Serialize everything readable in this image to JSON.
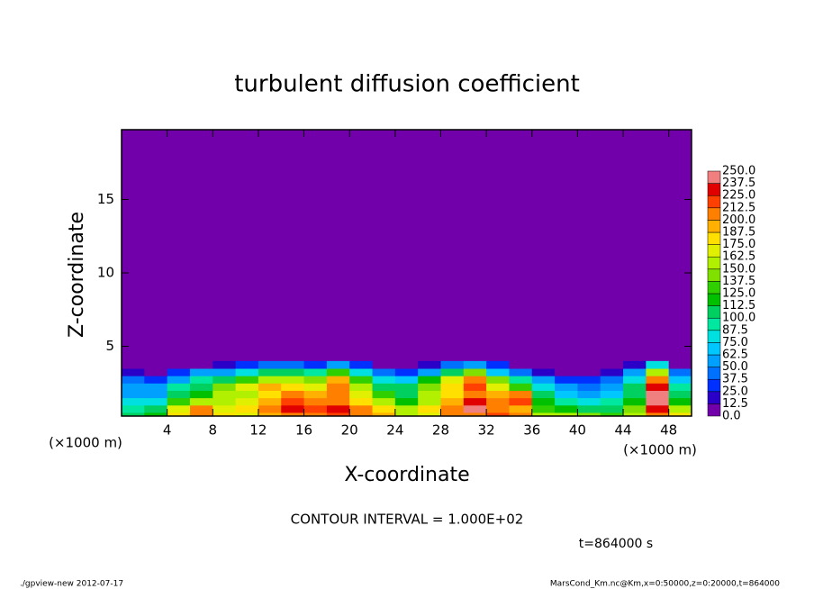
{
  "chart_data": {
    "type": "contour",
    "title": "turbulent diffusion coefficient",
    "x_label": "X-coordinate",
    "y_label": "Z-coordinate",
    "x_unit": "(×1000 m)",
    "x_unit_right": "(×1000 m)",
    "contour_note": "CONTOUR INTERVAL = 1.000E+02",
    "time_label": "t=864000 s",
    "footer_left": "./gpview-new  2012-07-17",
    "footer_right": "MarsCond_Km.nc@Km,x=0:50000,z=0:20000,t=864000",
    "xlim": [
      0,
      50
    ],
    "ylim": [
      0.25,
      19.75
    ],
    "xticks": [
      4,
      8,
      12,
      16,
      20,
      24,
      28,
      32,
      36,
      40,
      44,
      48
    ],
    "yticks": [
      5,
      10,
      15
    ],
    "x": [
      1,
      3,
      5,
      7,
      9,
      11,
      13,
      15,
      17,
      19,
      21,
      23,
      25,
      27,
      29,
      31,
      33,
      35,
      37,
      39,
      41,
      43,
      45,
      47,
      49
    ],
    "z": [
      0.25,
      0.75,
      1.25,
      1.75,
      2.25,
      2.75,
      3.25,
      3.75
    ],
    "values": [
      [
        100,
        120,
        180,
        200,
        180,
        170,
        190,
        210,
        200,
        220,
        200,
        190,
        160,
        170,
        200,
        210,
        220,
        200,
        160,
        150,
        140,
        130,
        150,
        200,
        180
      ],
      [
        90,
        110,
        170,
        210,
        170,
        180,
        200,
        230,
        220,
        230,
        210,
        180,
        150,
        180,
        210,
        240,
        210,
        190,
        130,
        120,
        110,
        110,
        140,
        230,
        150
      ],
      [
        80,
        80,
        130,
        150,
        160,
        170,
        190,
        220,
        210,
        200,
        180,
        150,
        120,
        160,
        190,
        230,
        200,
        220,
        120,
        90,
        80,
        90,
        120,
        250,
        120
      ],
      [
        60,
        60,
        100,
        120,
        150,
        160,
        180,
        210,
        190,
        200,
        170,
        130,
        110,
        150,
        180,
        210,
        190,
        200,
        100,
        70,
        60,
        70,
        110,
        240,
        100
      ],
      [
        50,
        50,
        90,
        110,
        140,
        170,
        190,
        180,
        170,
        200,
        160,
        110,
        100,
        140,
        180,
        220,
        170,
        130,
        80,
        50,
        40,
        50,
        100,
        230,
        90
      ],
      [
        40,
        30,
        60,
        90,
        110,
        130,
        150,
        150,
        140,
        190,
        130,
        80,
        70,
        120,
        170,
        200,
        140,
        90,
        50,
        30,
        30,
        40,
        80,
        210,
        70
      ],
      [
        20,
        10,
        30,
        50,
        60,
        80,
        100,
        110,
        90,
        130,
        80,
        40,
        30,
        60,
        100,
        140,
        70,
        40,
        20,
        10,
        10,
        20,
        50,
        150,
        40
      ],
      [
        0,
        0,
        0,
        10,
        20,
        30,
        40,
        40,
        30,
        60,
        30,
        10,
        0,
        20,
        40,
        60,
        30,
        10,
        0,
        0,
        0,
        0,
        20,
        80,
        10
      ]
    ],
    "levels": [
      {
        "value": 0,
        "label": "0.0"
      },
      12.5,
      {
        "value": 25,
        "label": "25.0"
      },
      37.5,
      {
        "value": 50,
        "label": "50.0"
      },
      62.5,
      {
        "value": 75,
        "label": "75.0"
      },
      87.5,
      {
        "value": 100,
        "label": "100.0"
      },
      112.5,
      {
        "value": 125,
        "label": "125.0"
      },
      137.5,
      {
        "value": 150,
        "label": "150.0"
      },
      162.5,
      {
        "value": 175,
        "label": "175.0"
      },
      187.5,
      {
        "value": 200,
        "label": "200.0"
      },
      212.5,
      {
        "value": 225,
        "label": "225.0"
      },
      237.5,
      {
        "value": 250,
        "label": "250.0"
      }
    ],
    "colors": [
      "#7200aa",
      "#2a00c8",
      "#0030ff",
      "#0070ff",
      "#00a0ff",
      "#00c8ff",
      "#00e0e0",
      "#00e8a0",
      "#00d060",
      "#00c000",
      "#30d000",
      "#80e000",
      "#b0f000",
      "#e0f000",
      "#ffe000",
      "#ffb000",
      "#ff8000",
      "#ff4000",
      "#e00000",
      "#f08080"
    ]
  }
}
